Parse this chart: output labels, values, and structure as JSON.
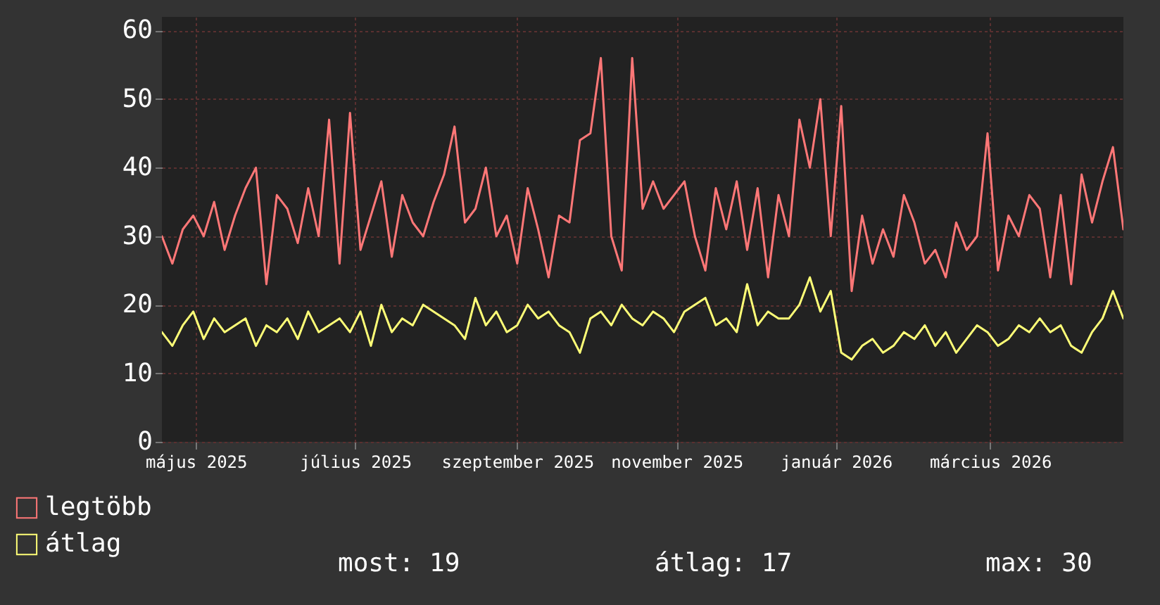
{
  "chart_data": {
    "type": "line",
    "x": [
      "2025-04-18",
      "2025-04-22",
      "2025-04-26",
      "2025-04-30",
      "2025-05-04",
      "2025-05-08",
      "2025-05-12",
      "2025-05-16",
      "2025-05-20",
      "2025-05-24",
      "2025-05-28",
      "2025-06-01",
      "2025-06-05",
      "2025-06-09",
      "2025-06-13",
      "2025-06-17",
      "2025-06-21",
      "2025-06-25",
      "2025-06-29",
      "2025-07-03",
      "2025-07-07",
      "2025-07-11",
      "2025-07-15",
      "2025-07-19",
      "2025-07-23",
      "2025-07-27",
      "2025-07-31",
      "2025-08-04",
      "2025-08-08",
      "2025-08-12",
      "2025-08-16",
      "2025-08-20",
      "2025-08-24",
      "2025-08-28",
      "2025-09-01",
      "2025-09-05",
      "2025-09-09",
      "2025-09-13",
      "2025-09-17",
      "2025-09-21",
      "2025-09-25",
      "2025-09-29",
      "2025-10-03",
      "2025-10-07",
      "2025-10-11",
      "2025-10-15",
      "2025-10-19",
      "2025-10-23",
      "2025-10-27",
      "2025-10-31",
      "2025-11-04",
      "2025-11-08",
      "2025-11-12",
      "2025-11-16",
      "2025-11-20",
      "2025-11-24",
      "2025-11-28",
      "2025-12-02",
      "2025-12-06",
      "2025-12-10",
      "2025-12-14",
      "2025-12-18",
      "2025-12-22",
      "2025-12-26",
      "2025-12-30",
      "2026-01-03",
      "2026-01-07",
      "2026-01-11",
      "2026-01-15",
      "2026-01-19",
      "2026-01-23",
      "2026-01-27",
      "2026-01-31",
      "2026-02-04",
      "2026-02-08",
      "2026-02-12",
      "2026-02-16",
      "2026-02-20",
      "2026-02-24",
      "2026-02-28",
      "2026-03-04",
      "2026-03-08",
      "2026-03-12",
      "2026-03-16",
      "2026-03-20",
      "2026-03-24",
      "2026-03-28",
      "2026-04-01",
      "2026-04-05",
      "2026-04-09",
      "2026-04-13",
      "2026-04-17",
      "2026-04-21"
    ],
    "series": [
      {
        "name": "legtöbb",
        "color": "#ff7777",
        "values": [
          30,
          26,
          31,
          33,
          30,
          35,
          28,
          33,
          37,
          40,
          23,
          36,
          34,
          29,
          37,
          30,
          47,
          26,
          48,
          28,
          33,
          38,
          27,
          36,
          32,
          30,
          35,
          39,
          46,
          32,
          34,
          40,
          30,
          33,
          26,
          37,
          31,
          24,
          33,
          32,
          44,
          45,
          56,
          30,
          25,
          56,
          34,
          38,
          34,
          36,
          38,
          30,
          25,
          37,
          31,
          38,
          28,
          37,
          24,
          36,
          30,
          47,
          40,
          50,
          30,
          49,
          22,
          33,
          26,
          31,
          27,
          36,
          32,
          26,
          28,
          24,
          32,
          28,
          30,
          45,
          25,
          33,
          30,
          36,
          34,
          24,
          36,
          23,
          39,
          32,
          38,
          43,
          31
        ]
      },
      {
        "name": "átlag",
        "color": "#ffff77",
        "values": [
          16,
          14,
          17,
          19,
          15,
          18,
          16,
          17,
          18,
          14,
          17,
          16,
          18,
          15,
          19,
          16,
          17,
          18,
          16,
          19,
          14,
          20,
          16,
          18,
          17,
          20,
          19,
          18,
          17,
          15,
          21,
          17,
          19,
          16,
          17,
          20,
          18,
          19,
          17,
          16,
          13,
          18,
          19,
          17,
          20,
          18,
          17,
          19,
          18,
          16,
          19,
          20,
          21,
          17,
          18,
          16,
          23,
          17,
          19,
          18,
          18,
          20,
          24,
          19,
          22,
          13,
          12,
          14,
          15,
          13,
          14,
          16,
          15,
          17,
          14,
          16,
          13,
          15,
          17,
          16,
          14,
          15,
          17,
          16,
          18,
          16,
          17,
          14,
          13,
          16,
          18,
          22,
          18
        ]
      }
    ],
    "xlim": [
      "2025-04-18",
      "2026-04-21"
    ],
    "xticks": [
      {
        "value": "2025-05-01",
        "label": "május 2025"
      },
      {
        "value": "2025-07-01",
        "label": "július 2025"
      },
      {
        "value": "2025-09-01",
        "label": "szeptember 2025"
      },
      {
        "value": "2025-11-01",
        "label": "november 2025"
      },
      {
        "value": "2026-01-01",
        "label": "január 2026"
      },
      {
        "value": "2026-03-01",
        "label": "március 2026"
      }
    ],
    "ylim": [
      0,
      62
    ],
    "yticks": [
      0,
      10,
      20,
      30,
      40,
      50,
      60
    ],
    "grid": true,
    "legend": "bottom",
    "marker": "none",
    "line_style": "solid",
    "annotations": [
      "most: 19",
      "átlag: 17",
      "max: 30"
    ]
  }
}
